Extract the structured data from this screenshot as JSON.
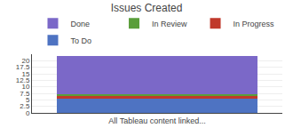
{
  "chart_data": {
    "type": "bar",
    "title": "Issues Created",
    "stacked": true,
    "categories": [
      "All Tableau content linked..."
    ],
    "series": [
      {
        "name": "To Do",
        "color": "#4e73c2",
        "values": [
          5.5
        ]
      },
      {
        "name": "In Progress",
        "color": "#c0392b",
        "values": [
          1.0
        ]
      },
      {
        "name": "In Review",
        "color": "#5a9e3a",
        "values": [
          0.8
        ]
      },
      {
        "name": "Done",
        "color": "#7b68c8",
        "values": [
          14.5
        ]
      }
    ],
    "ylim": [
      0,
      22.5
    ],
    "yticks": [
      0,
      2.5,
      5,
      7.5,
      10,
      12.5,
      15,
      17.5,
      20
    ],
    "grid": true,
    "legend": "top"
  }
}
